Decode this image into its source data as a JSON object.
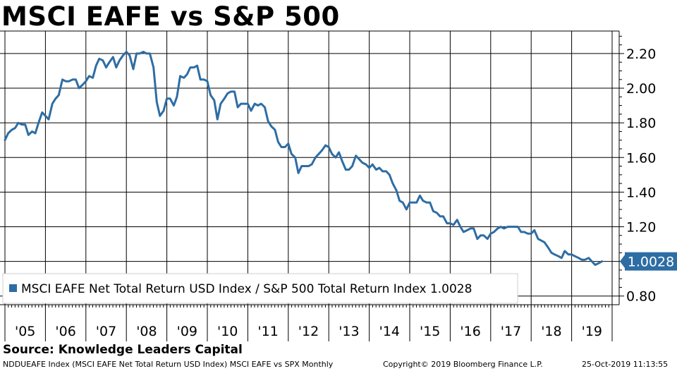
{
  "title": "MSCI EAFE vs S&P 500",
  "source": "Source: Knowledge Leaders Capital",
  "footer": {
    "description": "NDDUEAFE Index (MSCI EAFE Net Total Return USD Index) MSCI EAFE vs SPX  Monthly",
    "copyright": "Copyright© 2019 Bloomberg Finance L.P.",
    "timestamp": "25-Oct-2019 11:13:55"
  },
  "colors": {
    "line": "#2e6da4",
    "grid": "#000000",
    "background": "#ffffff"
  },
  "chart_data": {
    "type": "line",
    "x_ticks": [
      "'05",
      "'06",
      "'07",
      "'08",
      "'09",
      "'10",
      "'11",
      "'12",
      "'13",
      "'14",
      "'15",
      "'16",
      "'17",
      "'18",
      "'19"
    ],
    "y_ticks": [
      "2.20",
      "2.00",
      "1.80",
      "1.60",
      "1.40",
      "1.20",
      "0.80"
    ],
    "ylim": [
      0.75,
      2.33
    ],
    "xlim": [
      2005.0,
      2020.0
    ],
    "grid": true,
    "legend": {
      "position": "bottom-left",
      "entries": [
        "MSCI EAFE Net Total Return USD Index / S&P 500 Total Return Index 1.0028"
      ]
    },
    "last_value_label": "1.0028",
    "series": [
      {
        "name": "MSCI EAFE Net Total Return USD Index / S&P 500 Total Return Index 1.0028",
        "x": [
          2005.0,
          2005.08,
          2005.17,
          2005.25,
          2005.33,
          2005.42,
          2005.5,
          2005.58,
          2005.67,
          2005.75,
          2005.83,
          2005.92,
          2006.0,
          2006.08,
          2006.17,
          2006.25,
          2006.33,
          2006.42,
          2006.5,
          2006.58,
          2006.67,
          2006.75,
          2006.83,
          2006.92,
          2007.0,
          2007.08,
          2007.17,
          2007.25,
          2007.33,
          2007.42,
          2007.5,
          2007.58,
          2007.67,
          2007.75,
          2007.83,
          2007.92,
          2008.0,
          2008.08,
          2008.17,
          2008.25,
          2008.33,
          2008.42,
          2008.5,
          2008.58,
          2008.67,
          2008.75,
          2008.83,
          2008.92,
          2009.0,
          2009.08,
          2009.17,
          2009.25,
          2009.33,
          2009.42,
          2009.5,
          2009.58,
          2009.67,
          2009.75,
          2009.83,
          2009.92,
          2010.0,
          2010.08,
          2010.17,
          2010.25,
          2010.33,
          2010.42,
          2010.5,
          2010.58,
          2010.67,
          2010.75,
          2010.83,
          2010.92,
          2011.0,
          2011.08,
          2011.17,
          2011.25,
          2011.33,
          2011.42,
          2011.5,
          2011.58,
          2011.67,
          2011.75,
          2011.83,
          2011.92,
          2012.0,
          2012.08,
          2012.17,
          2012.25,
          2012.33,
          2012.42,
          2012.5,
          2012.58,
          2012.67,
          2012.75,
          2012.83,
          2012.92,
          2013.0,
          2013.08,
          2013.17,
          2013.25,
          2013.33,
          2013.42,
          2013.5,
          2013.58,
          2013.67,
          2013.75,
          2013.83,
          2013.92,
          2014.0,
          2014.08,
          2014.17,
          2014.25,
          2014.33,
          2014.42,
          2014.5,
          2014.58,
          2014.67,
          2014.75,
          2014.83,
          2014.92,
          2015.0,
          2015.08,
          2015.17,
          2015.25,
          2015.33,
          2015.42,
          2015.5,
          2015.58,
          2015.67,
          2015.75,
          2015.83,
          2015.92,
          2016.0,
          2016.08,
          2016.17,
          2016.25,
          2016.33,
          2016.42,
          2016.5,
          2016.58,
          2016.67,
          2016.75,
          2016.83,
          2016.92,
          2017.0,
          2017.08,
          2017.17,
          2017.25,
          2017.33,
          2017.42,
          2017.5,
          2017.58,
          2017.67,
          2017.75,
          2017.83,
          2017.92,
          2018.0,
          2018.08,
          2018.17,
          2018.25,
          2018.33,
          2018.42,
          2018.5,
          2018.58,
          2018.67,
          2018.75,
          2018.83,
          2018.92,
          2019.0,
          2019.08,
          2019.17,
          2019.25,
          2019.33,
          2019.42,
          2019.5,
          2019.58,
          2019.67,
          2019.75
        ],
        "values": [
          1.7,
          1.74,
          1.76,
          1.77,
          1.8,
          1.79,
          1.79,
          1.73,
          1.75,
          1.74,
          1.8,
          1.86,
          1.84,
          1.82,
          1.91,
          1.94,
          1.96,
          2.05,
          2.04,
          2.04,
          2.05,
          2.05,
          2.0,
          2.02,
          2.04,
          2.07,
          2.06,
          2.13,
          2.17,
          2.16,
          2.12,
          2.15,
          2.18,
          2.12,
          2.16,
          2.19,
          2.21,
          2.19,
          2.11,
          2.2,
          2.2,
          2.21,
          2.2,
          2.2,
          2.12,
          1.92,
          1.84,
          1.87,
          1.94,
          1.94,
          1.9,
          1.95,
          2.07,
          2.06,
          2.08,
          2.12,
          2.12,
          2.13,
          2.05,
          2.05,
          2.04,
          1.96,
          1.93,
          1.82,
          1.91,
          1.94,
          1.97,
          1.98,
          1.98,
          1.89,
          1.91,
          1.91,
          1.91,
          1.87,
          1.91,
          1.9,
          1.91,
          1.89,
          1.81,
          1.78,
          1.76,
          1.69,
          1.66,
          1.66,
          1.68,
          1.62,
          1.6,
          1.51,
          1.55,
          1.55,
          1.55,
          1.56,
          1.6,
          1.62,
          1.64,
          1.67,
          1.66,
          1.62,
          1.6,
          1.63,
          1.58,
          1.53,
          1.53,
          1.55,
          1.61,
          1.59,
          1.57,
          1.56,
          1.54,
          1.56,
          1.53,
          1.54,
          1.52,
          1.52,
          1.5,
          1.45,
          1.41,
          1.35,
          1.34,
          1.3,
          1.34,
          1.34,
          1.34,
          1.38,
          1.35,
          1.34,
          1.34,
          1.29,
          1.28,
          1.26,
          1.26,
          1.22,
          1.22,
          1.21,
          1.24,
          1.2,
          1.17,
          1.18,
          1.19,
          1.19,
          1.13,
          1.15,
          1.15,
          1.13,
          1.16,
          1.17,
          1.19,
          1.2,
          1.19,
          1.2,
          1.2,
          1.2,
          1.2,
          1.17,
          1.17,
          1.16,
          1.16,
          1.18,
          1.13,
          1.12,
          1.11,
          1.08,
          1.05,
          1.04,
          1.03,
          1.02,
          1.06,
          1.04,
          1.04,
          1.03,
          1.02,
          1.01,
          1.01,
          1.02,
          1.0,
          0.98,
          0.99,
          1.0
        ]
      }
    ]
  }
}
